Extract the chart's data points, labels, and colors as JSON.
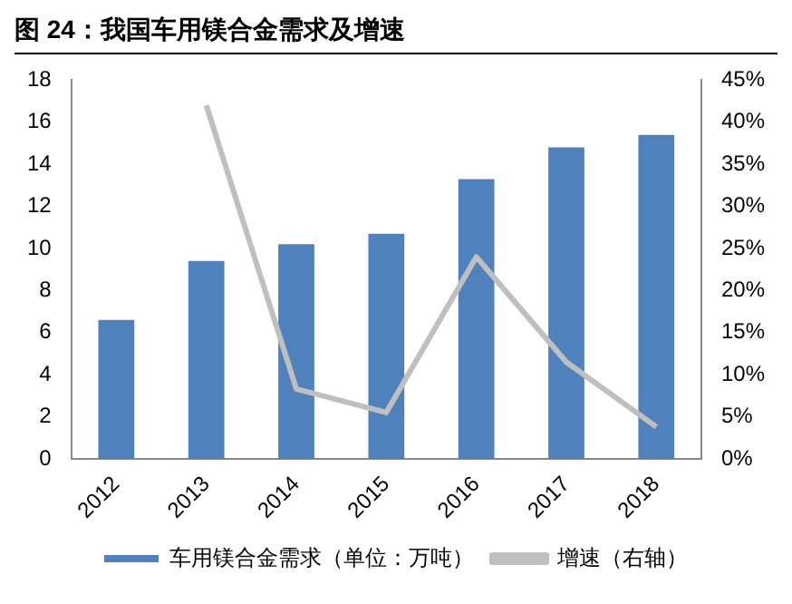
{
  "chart_data": {
    "type": "bar",
    "title": "图 24：我国车用镁合金需求及增速",
    "categories": [
      "2012",
      "2013",
      "2014",
      "2015",
      "2016",
      "2017",
      "2018"
    ],
    "series": [
      {
        "name": "车用镁合金需求（单位：万吨）",
        "color": "#4f81bd",
        "values": [
          6.6,
          9.4,
          10.2,
          10.7,
          13.3,
          14.8,
          15.4
        ]
      },
      {
        "name": "增速（右轴）",
        "type": "line",
        "axis": "y2",
        "color": "#bfbfbf",
        "values": [
          null,
          42,
          8.3,
          5.5,
          24,
          11.5,
          3.8
        ]
      }
    ],
    "ylim": [
      0,
      18
    ],
    "yticks": [
      0,
      2,
      4,
      6,
      8,
      10,
      12,
      14,
      16,
      18
    ],
    "y2lim": [
      0,
      45
    ],
    "y2ticks": [
      {
        "value": 0,
        "label": "0%"
      },
      {
        "value": 5,
        "label": "5%"
      },
      {
        "value": 10,
        "label": "10%"
      },
      {
        "value": 15,
        "label": "15%"
      },
      {
        "value": 20,
        "label": "20%"
      },
      {
        "value": 25,
        "label": "25%"
      },
      {
        "value": 30,
        "label": "30%"
      },
      {
        "value": 35,
        "label": "35%"
      },
      {
        "value": 40,
        "label": "40%"
      },
      {
        "value": 45,
        "label": "45%"
      }
    ],
    "grid": false,
    "legend": "bottom",
    "marker": "none"
  }
}
